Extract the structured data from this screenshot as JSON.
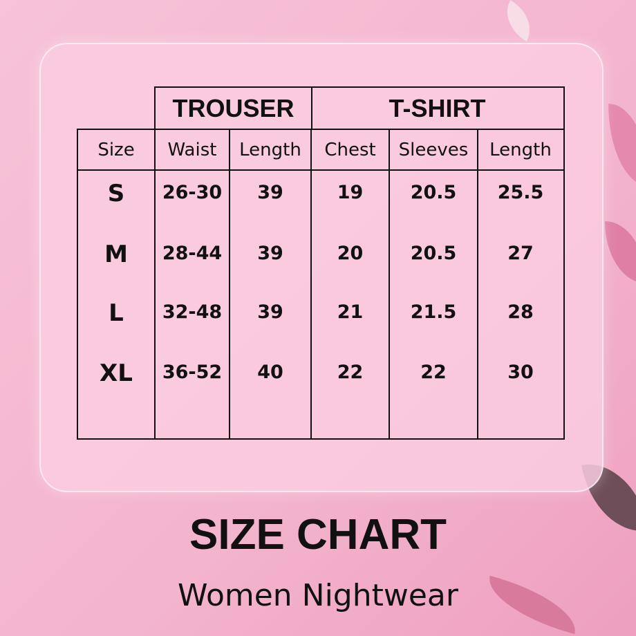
{
  "groups": {
    "trouser": "TROUSER",
    "tshirt": "T-SHIRT"
  },
  "columns": [
    "Size",
    "Waist",
    "Length",
    "Chest",
    "Sleeves",
    "Length"
  ],
  "rows": [
    [
      "S",
      "26-30",
      "39",
      "19",
      "20.5",
      "25.5"
    ],
    [
      "M",
      "28-44",
      "39",
      "20",
      "20.5",
      "27"
    ],
    [
      "L",
      "32-48",
      "39",
      "21",
      "21.5",
      "28"
    ],
    [
      "XL",
      "36-52",
      "40",
      "22",
      "22",
      "30"
    ]
  ],
  "title": "SIZE CHART",
  "subtitle": "Women Nightwear",
  "colors": {
    "background": "#f4b8d0",
    "card": "#f9cde0",
    "text": "#111111"
  }
}
